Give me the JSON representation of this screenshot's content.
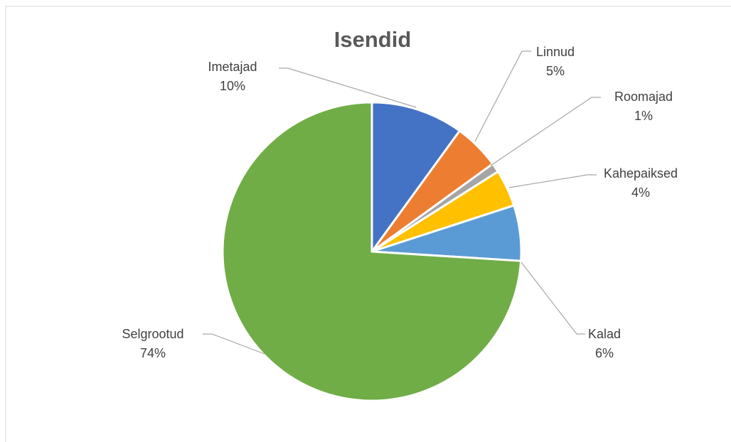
{
  "chart_data": {
    "type": "pie",
    "title": "Isendid",
    "slices": [
      {
        "name": "Imetajad",
        "value": 10,
        "label": "10%",
        "color": "#4472c4"
      },
      {
        "name": "Linnud",
        "value": 5,
        "label": "5%",
        "color": "#ed7d31"
      },
      {
        "name": "Roomajad",
        "value": 1,
        "label": "1%",
        "color": "#a5a5a5"
      },
      {
        "name": "Kahepaiksed",
        "value": 4,
        "label": "4%",
        "color": "#ffc000"
      },
      {
        "name": "Kalad",
        "value": 6,
        "label": "6%",
        "color": "#5b9bd5"
      },
      {
        "name": "Selgrootud",
        "value": 74,
        "label": "74%",
        "color": "#70ad47"
      }
    ],
    "legend": "none"
  }
}
